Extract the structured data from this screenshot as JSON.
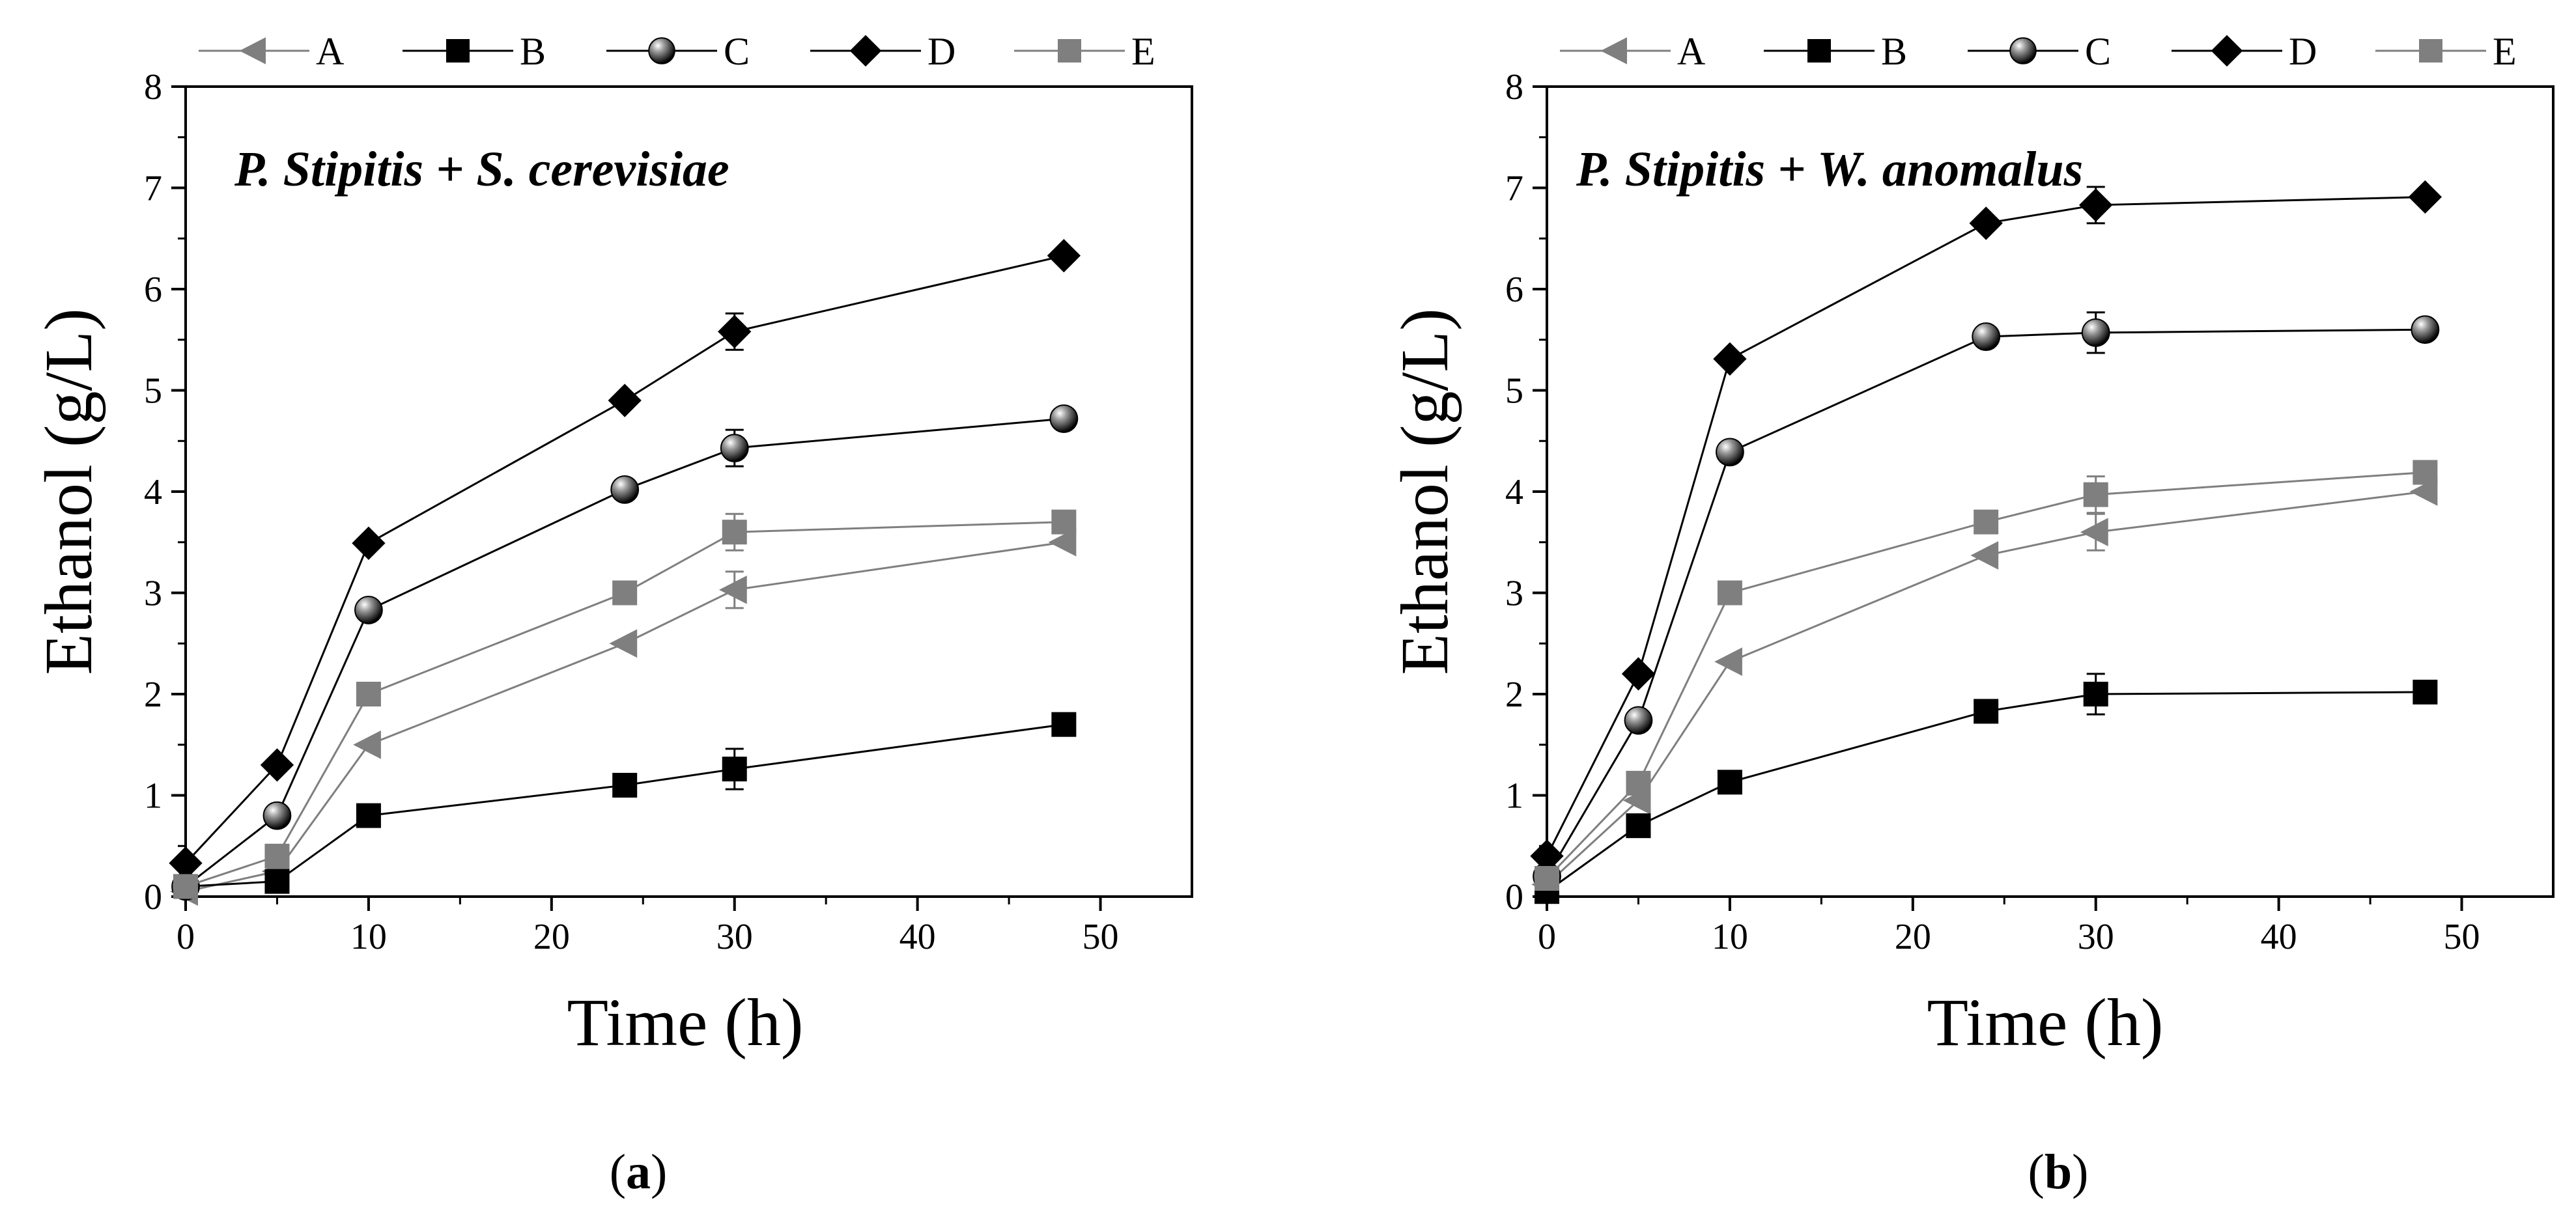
{
  "figure": {
    "captions": [
      {
        "open": "(",
        "letter": "a",
        "close": ")"
      },
      {
        "open": "(",
        "letter": "b",
        "close": ")"
      }
    ]
  },
  "legend": {
    "entries": [
      {
        "key": "A",
        "label": "A",
        "marker": "triangle-left",
        "color": "#7f7f7f"
      },
      {
        "key": "B",
        "label": "B",
        "marker": "square",
        "color": "#000000"
      },
      {
        "key": "C",
        "label": "C",
        "marker": "sphere",
        "color": "#000000"
      },
      {
        "key": "D",
        "label": "D",
        "marker": "diamond",
        "color": "#000000"
      },
      {
        "key": "E",
        "label": "E",
        "marker": "square",
        "color": "#7f7f7f"
      }
    ]
  },
  "chart_data": [
    {
      "type": "line",
      "title": "P. Stipitis + S. cerevisiae",
      "xlabel": "Time (h)",
      "ylabel": "Ethanol (g/L)",
      "xlim": [
        0,
        55
      ],
      "ylim": [
        0,
        8
      ],
      "xticks": [
        0,
        10,
        20,
        30,
        40,
        50
      ],
      "yticks": [
        0,
        1,
        2,
        3,
        4,
        5,
        6,
        7,
        8
      ],
      "grid": false,
      "legend": "top",
      "x": [
        0,
        5,
        10,
        24,
        30,
        48
      ],
      "series": [
        {
          "name": "A",
          "values": [
            0.05,
            0.25,
            1.5,
            2.5,
            3.03,
            3.5
          ],
          "errors": [
            0,
            0,
            0,
            0,
            0.18,
            0
          ]
        },
        {
          "name": "B",
          "values": [
            0.1,
            0.15,
            0.8,
            1.1,
            1.26,
            1.7
          ],
          "errors": [
            0,
            0,
            0,
            0,
            0.2,
            0
          ]
        },
        {
          "name": "C",
          "values": [
            0.1,
            0.8,
            2.83,
            4.02,
            4.43,
            4.72
          ],
          "errors": [
            0,
            0,
            0,
            0,
            0.18,
            0
          ]
        },
        {
          "name": "D",
          "values": [
            0.33,
            1.3,
            3.49,
            4.9,
            5.58,
            6.33
          ],
          "errors": [
            0,
            0,
            0,
            0,
            0.18,
            0
          ]
        },
        {
          "name": "E",
          "values": [
            0.1,
            0.4,
            2.0,
            3.0,
            3.6,
            3.7
          ],
          "errors": [
            0,
            0,
            0,
            0,
            0.18,
            0
          ]
        }
      ]
    },
    {
      "type": "line",
      "title": "P. Stipitis + W. anomalus",
      "xlabel": "Time (h)",
      "ylabel": "Ethanol (g/L)",
      "xlim": [
        0,
        55
      ],
      "ylim": [
        0,
        8
      ],
      "xticks": [
        0,
        10,
        20,
        30,
        40,
        50
      ],
      "yticks": [
        0,
        1,
        2,
        3,
        4,
        5,
        6,
        7,
        8
      ],
      "grid": false,
      "legend": "top",
      "x": [
        0,
        5,
        10,
        24,
        30,
        48
      ],
      "series": [
        {
          "name": "A",
          "values": [
            0.12,
            0.95,
            2.32,
            3.37,
            3.6,
            4.0
          ],
          "errors": [
            0,
            0,
            0,
            0,
            0.18,
            0
          ]
        },
        {
          "name": "B",
          "values": [
            0.05,
            0.7,
            1.13,
            1.83,
            2.0,
            2.02
          ],
          "errors": [
            0,
            0,
            0,
            0,
            0.2,
            0
          ]
        },
        {
          "name": "C",
          "values": [
            0.2,
            1.74,
            4.39,
            5.53,
            5.57,
            5.6
          ],
          "errors": [
            0,
            0,
            0,
            0,
            0.2,
            0
          ]
        },
        {
          "name": "D",
          "values": [
            0.4,
            2.2,
            5.31,
            6.65,
            6.83,
            6.91
          ],
          "errors": [
            0,
            0,
            0,
            0,
            0.18,
            0
          ]
        },
        {
          "name": "E",
          "values": [
            0.18,
            1.12,
            3.0,
            3.7,
            3.97,
            4.19
          ],
          "errors": [
            0,
            0,
            0,
            0,
            0.18,
            0
          ]
        }
      ]
    }
  ]
}
